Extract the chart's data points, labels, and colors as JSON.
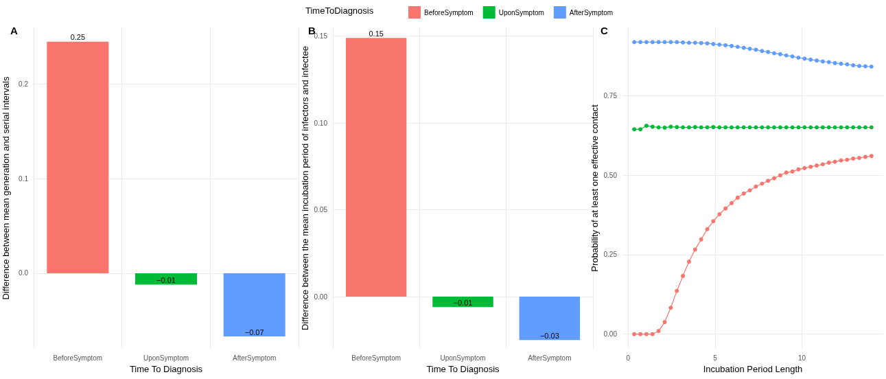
{
  "chart_data": [
    {
      "type": "bar",
      "title": "A",
      "xlabel": "Time To Diagnosis",
      "ylabel": "Difference between mean generation and serial intervals",
      "categories": [
        "BeforeSymptom",
        "UponSymptom",
        "AfterSymptom"
      ],
      "values": [
        0.245,
        -0.012,
        -0.067
      ],
      "value_labels": [
        "0.25",
        "−0.01",
        "−0.07"
      ],
      "colors": [
        "#f8766d",
        "#00ba38",
        "#619cff"
      ],
      "ylim": [
        -0.08,
        0.26
      ],
      "yticks": [
        {
          "value": 0,
          "label": "0.0"
        },
        0.1,
        0.2
      ],
      "grid": true
    },
    {
      "type": "bar",
      "title": "B",
      "xlabel": "Time To Diagnosis",
      "ylabel": "Difference between the mean incubation period of infectors and infectee",
      "categories": [
        "BeforeSymptom",
        "UponSymptom",
        "AfterSymptom"
      ],
      "values": [
        0.149,
        -0.006,
        -0.025
      ],
      "value_labels": [
        "0.15",
        "−0.01",
        "−0.03"
      ],
      "colors": [
        "#f8766d",
        "#00ba38",
        "#619cff"
      ],
      "ylim": [
        -0.03,
        0.155
      ],
      "yticks": [
        {
          "value": 0,
          "label": "0.00"
        },
        0.05,
        {
          "value": 0.1,
          "label": "0.10"
        },
        0.15
      ],
      "grid": true
    },
    {
      "type": "line",
      "title": "C",
      "xlabel": "Incubation Period Length",
      "ylabel": "Probability of at least one effective contact",
      "legend_title": "TimeToDiagnosis",
      "legend": "top",
      "marker": "circle",
      "grid": true,
      "x": [
        0.35,
        0.7,
        1.05,
        1.4,
        1.75,
        2.1,
        2.45,
        2.8,
        3.15,
        3.5,
        3.85,
        4.2,
        4.55,
        4.9,
        5.25,
        5.6,
        5.95,
        6.3,
        6.65,
        7.0,
        7.35,
        7.7,
        8.05,
        8.4,
        8.75,
        9.1,
        9.45,
        9.8,
        10.15,
        10.5,
        10.85,
        11.2,
        11.55,
        11.9,
        12.25,
        12.6,
        12.95,
        13.3,
        13.65,
        14.0
      ],
      "series": [
        {
          "name": "BeforeSymptom",
          "color": "#f8766d",
          "values": [
            0,
            0,
            0,
            0,
            0.01,
            0.038,
            0.083,
            0.136,
            0.183,
            0.228,
            0.266,
            0.298,
            0.33,
            0.355,
            0.377,
            0.395,
            0.412,
            0.429,
            0.442,
            0.452,
            0.464,
            0.473,
            0.482,
            0.49,
            0.499,
            0.508,
            0.511,
            0.518,
            0.522,
            0.526,
            0.53,
            0.534,
            0.539,
            0.542,
            0.546,
            0.548,
            0.552,
            0.554,
            0.557,
            0.56
          ]
        },
        {
          "name": "UponSymptom",
          "color": "#00ba38",
          "values": [
            0.644,
            0.644,
            0.655,
            0.652,
            0.65,
            0.649,
            0.652,
            0.651,
            0.65,
            0.65,
            0.651,
            0.65,
            0.65,
            0.651,
            0.65,
            0.65,
            0.65,
            0.65,
            0.65,
            0.65,
            0.65,
            0.65,
            0.65,
            0.65,
            0.65,
            0.65,
            0.65,
            0.65,
            0.65,
            0.65,
            0.65,
            0.65,
            0.65,
            0.65,
            0.65,
            0.65,
            0.65,
            0.65,
            0.65,
            0.65
          ]
        },
        {
          "name": "AfterSymptom",
          "color": "#619cff",
          "values": [
            0.918,
            0.918,
            0.918,
            0.918,
            0.918,
            0.918,
            0.918,
            0.918,
            0.917,
            0.916,
            0.916,
            0.915,
            0.914,
            0.912,
            0.91,
            0.908,
            0.906,
            0.903,
            0.9,
            0.897,
            0.894,
            0.89,
            0.887,
            0.883,
            0.88,
            0.876,
            0.873,
            0.869,
            0.866,
            0.863,
            0.86,
            0.857,
            0.855,
            0.852,
            0.85,
            0.848,
            0.845,
            0.843,
            0.842,
            0.841
          ]
        }
      ],
      "xlim": [
        -0.33,
        14.68
      ],
      "xticks": [
        0,
        5,
        10
      ],
      "ylim": [
        -0.046,
        0.964
      ],
      "yticks": [
        {
          "value": 0,
          "label": "0.00"
        },
        0.25,
        {
          "value": 0.5,
          "label": "0.50"
        },
        0.75
      ]
    }
  ]
}
